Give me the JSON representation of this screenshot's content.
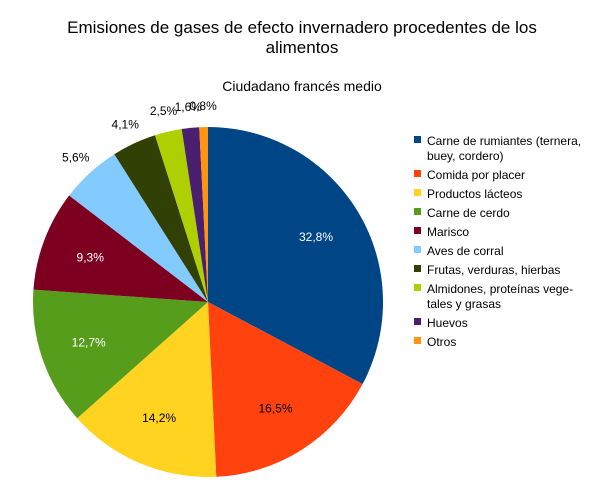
{
  "chart_data": {
    "type": "pie",
    "title": [
      "Emisiones de gases de efecto invernadero procedentes de los",
      "alimentos"
    ],
    "subtitle": "Ciudadano francés medio",
    "legend_position": "right",
    "slices": [
      {
        "name": "Carne de rumiantes (ternera, buey, cordero)",
        "legend_lines": [
          "Carne de rumiantes (ternera,",
          "buey, cordero)"
        ],
        "value": 32.8,
        "label": "32,8%",
        "color": "#004586"
      },
      {
        "name": "Comida por placer",
        "legend_lines": [
          "Comida por placer"
        ],
        "value": 16.5,
        "label": "16,5%",
        "color": "#ff420e"
      },
      {
        "name": "Productos lácteos",
        "legend_lines": [
          "Productos lácteos"
        ],
        "value": 14.2,
        "label": "14,2%",
        "color": "#ffd320"
      },
      {
        "name": "Carne de cerdo",
        "legend_lines": [
          "Carne de cerdo"
        ],
        "value": 12.7,
        "label": "12,7%",
        "color": "#579d1c"
      },
      {
        "name": "Marisco",
        "legend_lines": [
          "Marisco"
        ],
        "value": 9.3,
        "label": "9,3%",
        "color": "#7e0021"
      },
      {
        "name": "Aves de corral",
        "legend_lines": [
          "Aves de corral"
        ],
        "value": 5.6,
        "label": "5,6%",
        "color": "#83caff"
      },
      {
        "name": "Frutas, verduras, hierbas",
        "legend_lines": [
          "Frutas, verduras, hierbas"
        ],
        "value": 4.1,
        "label": "4,1%",
        "color": "#314004"
      },
      {
        "name": "Almidones, proteínas vegetales y grasas",
        "legend_lines": [
          "Almidones, proteínas vege-",
          "tales y grasas"
        ],
        "value": 2.5,
        "label": "2,5%",
        "color": "#aecf00"
      },
      {
        "name": "Huevos",
        "legend_lines": [
          "Huevos"
        ],
        "value": 1.6,
        "label": "1,6%",
        "color": "#4b1f6f"
      },
      {
        "name": "Otros",
        "legend_lines": [
          "Otros"
        ],
        "value": 0.8,
        "label": "0,8%",
        "color": "#ff950e"
      }
    ]
  }
}
